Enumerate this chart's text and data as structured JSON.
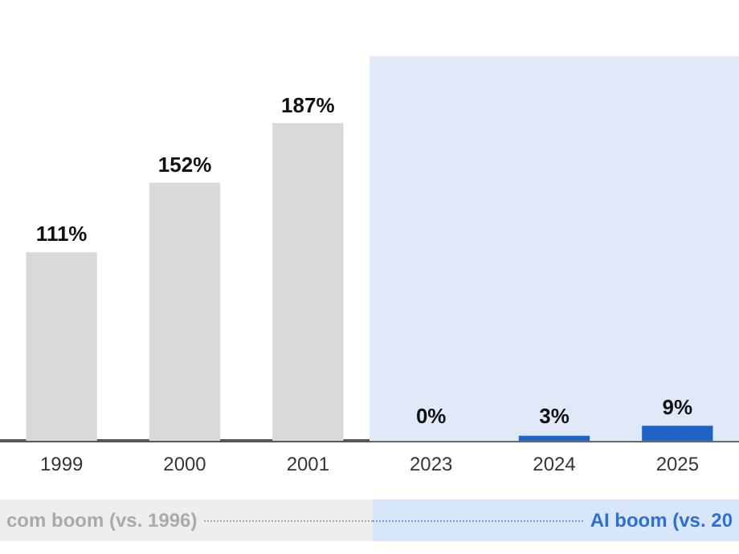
{
  "chart_data": {
    "type": "bar",
    "categories": [
      "1999",
      "2000",
      "2001",
      "2023",
      "2024",
      "2025"
    ],
    "series": [
      {
        "colors": [
          "#d9d9d9",
          "#d9d9d9",
          "#d9d9d9",
          "#1f63c6",
          "#1f63c6",
          "#1f63c6"
        ],
        "values": [
          111,
          152,
          187,
          0,
          3,
          9
        ],
        "value_labels": [
          "111%",
          "152%",
          "187%",
          "0%",
          "3%",
          "9%"
        ]
      }
    ],
    "bands": [
      {
        "axis": "x",
        "from": "2023",
        "to": "2025",
        "color": "#dfe9f8"
      }
    ],
    "annotations": [
      "com boom (vs. 1996)",
      "AI boom (vs. 20"
    ],
    "grid": false,
    "legend": false
  }
}
